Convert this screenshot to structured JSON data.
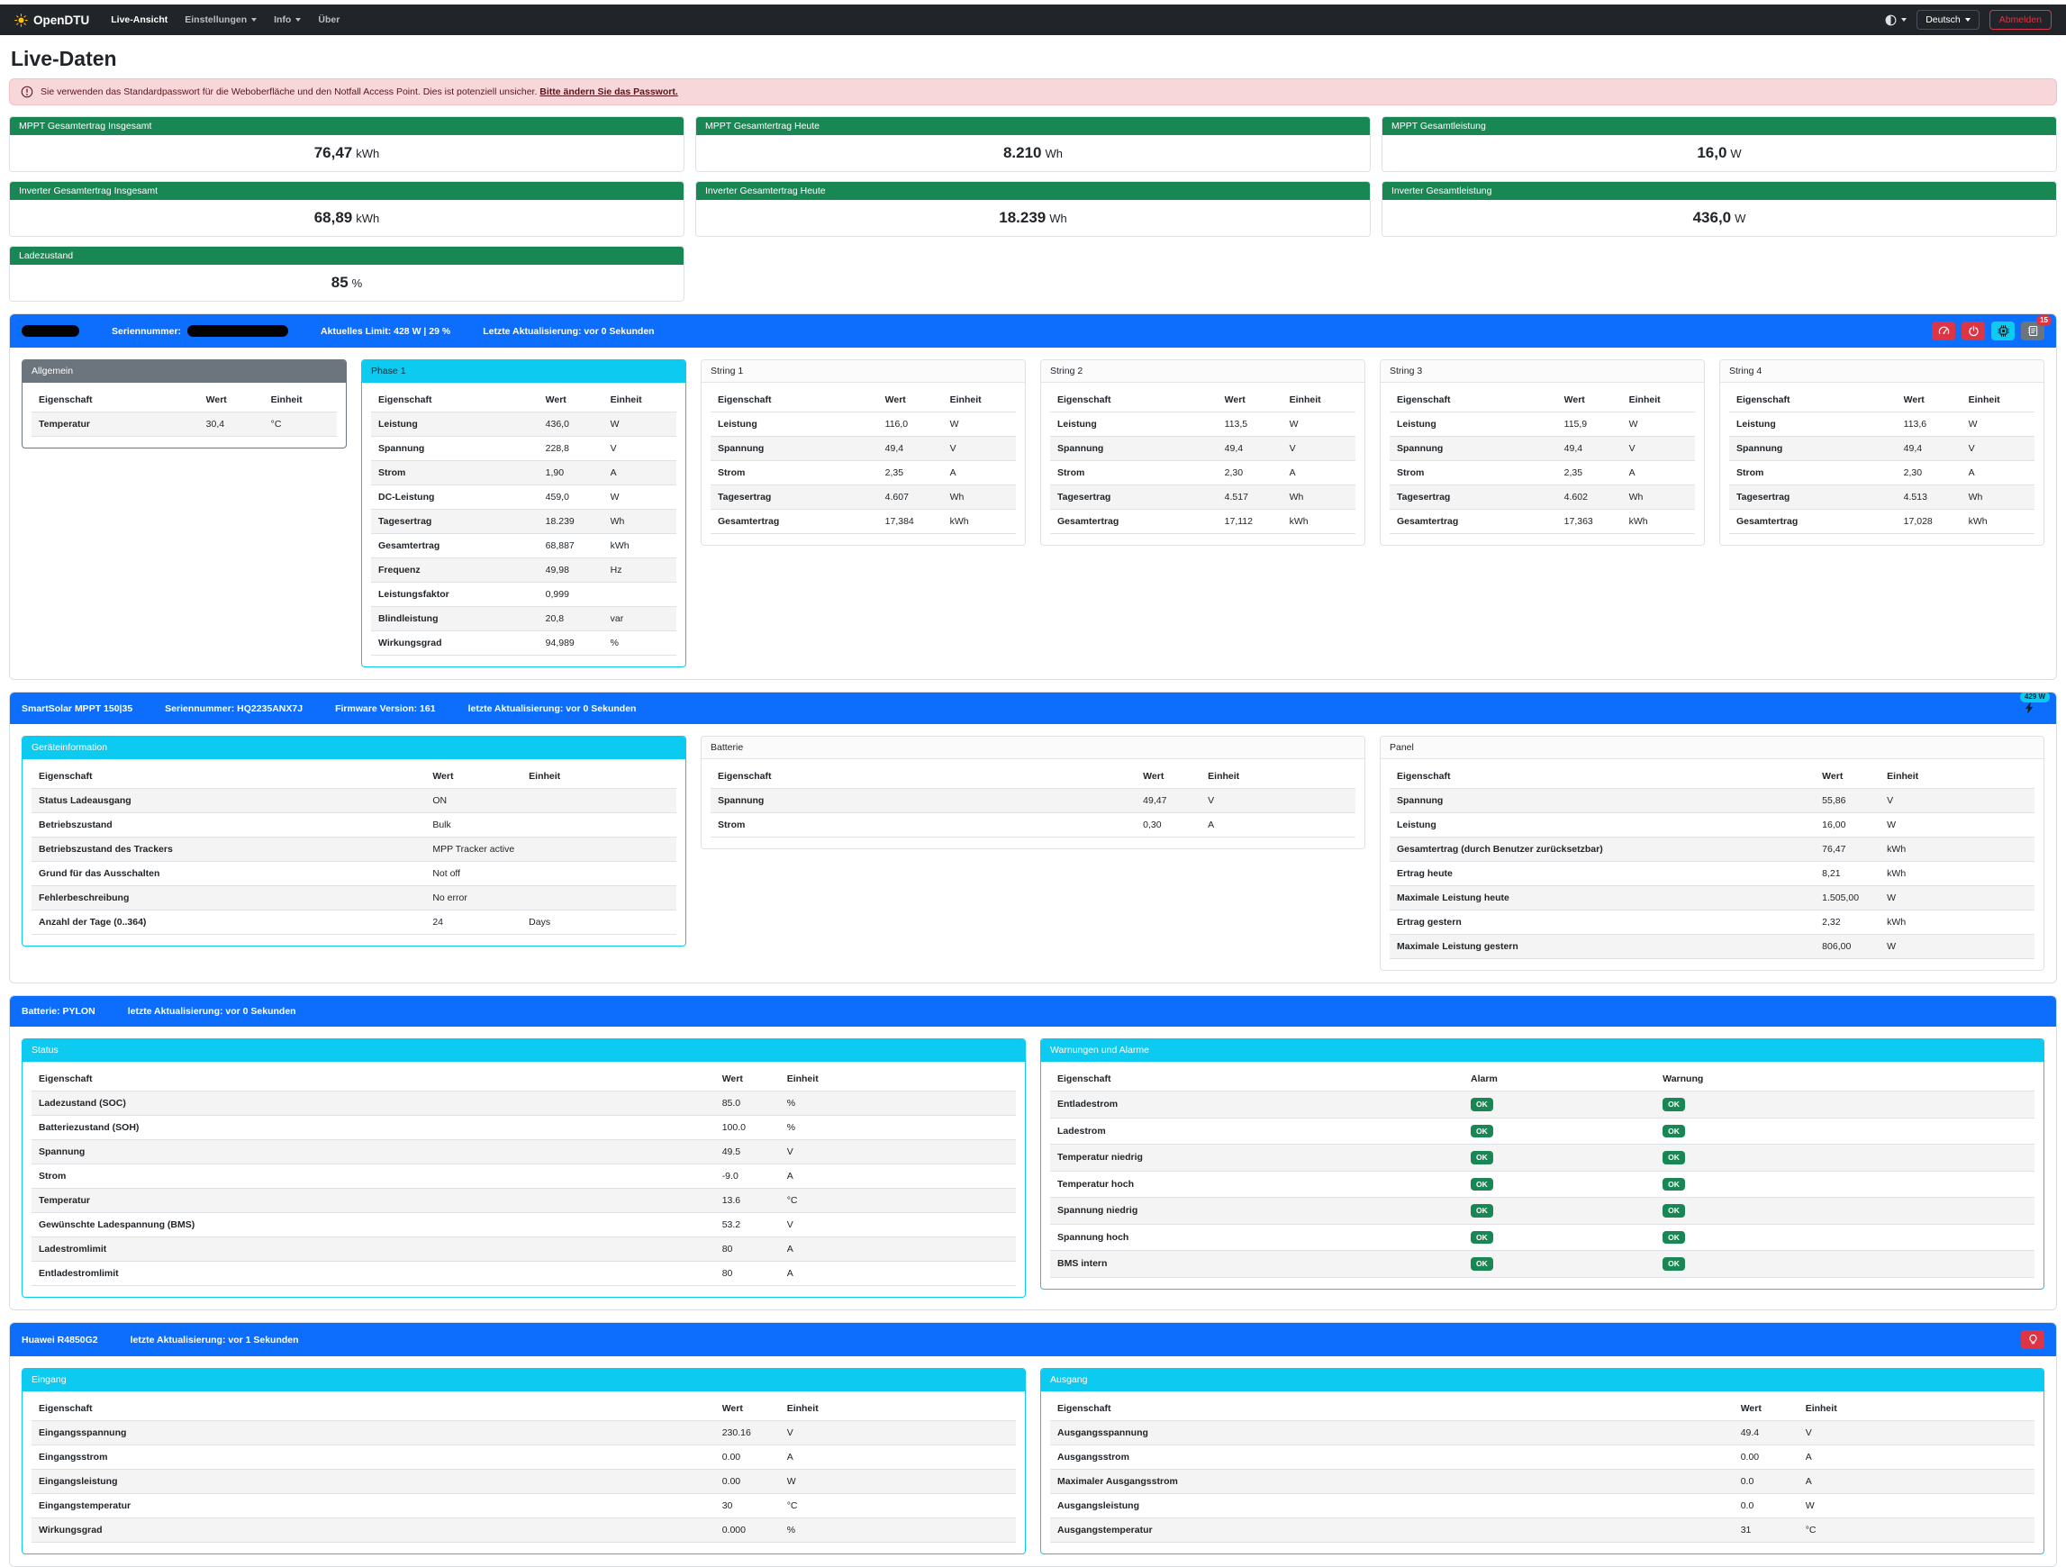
{
  "navbar": {
    "brand": "OpenDTU",
    "items": [
      {
        "label": "Live-Ansicht"
      },
      {
        "label": "Einstellungen"
      },
      {
        "label": "Info"
      },
      {
        "label": "Über"
      }
    ],
    "language": "Deutsch",
    "logout_label": "Abmelden"
  },
  "page": {
    "title": "Live-Daten"
  },
  "alert": {
    "text": "Sie verwenden das Standardpasswort für die Weboberfläche und den Notfall Access Point. Dies ist potenziell unsicher.",
    "link": "Bitte ändern Sie das Passwort."
  },
  "summary_cards": [
    {
      "title": "MPPT Gesamtertrag Insgesamt",
      "value": "76,47",
      "unit": "kWh"
    },
    {
      "title": "MPPT Gesamtertrag Heute",
      "value": "8.210",
      "unit": "Wh"
    },
    {
      "title": "MPPT Gesamtleistung",
      "value": "16,0",
      "unit": "W"
    },
    {
      "title": "Inverter Gesamtertrag Insgesamt",
      "value": "68,89",
      "unit": "kWh"
    },
    {
      "title": "Inverter Gesamtertrag Heute",
      "value": "18.239",
      "unit": "Wh"
    },
    {
      "title": "Inverter Gesamtleistung",
      "value": "436,0",
      "unit": "W"
    },
    {
      "title": "Ladezustand",
      "value": "85",
      "unit": "%"
    }
  ],
  "sections": {
    "inverter": {
      "bar": {
        "serial_label": "Seriennummer:",
        "limit": "Aktuelles Limit: 428 W | 29 %",
        "updated": "Letzte Aktualisierung: vor 0 Sekunden",
        "event_count": "15"
      },
      "allgemein": {
        "title": "Allgemein",
        "stripe": "odd",
        "columns": [
          "Eigenschaft",
          "Wert",
          "Einheit"
        ],
        "rows": [
          [
            "Temperatur",
            "30,4",
            "°C"
          ]
        ]
      },
      "phase1": {
        "title": "Phase 1",
        "stripe": "odd",
        "columns": [
          "Eigenschaft",
          "Wert",
          "Einheit"
        ],
        "rows": [
          [
            "Leistung",
            "436,0",
            "W"
          ],
          [
            "Spannung",
            "228,8",
            "V"
          ],
          [
            "Strom",
            "1,90",
            "A"
          ],
          [
            "DC-Leistung",
            "459,0",
            "W"
          ],
          [
            "Tagesertrag",
            "18.239",
            "Wh"
          ],
          [
            "Gesamtertrag",
            "68,887",
            "kWh"
          ],
          [
            "Frequenz",
            "49,98",
            "Hz"
          ],
          [
            "Leistungsfaktor",
            "0,999",
            ""
          ],
          [
            "Blindleistung",
            "20,8",
            "var"
          ],
          [
            "Wirkungsgrad",
            "94,989",
            "%"
          ]
        ]
      },
      "string1": {
        "title": "String 1",
        "stripe": "even",
        "columns": [
          "Eigenschaft",
          "Wert",
          "Einheit"
        ],
        "rows": [
          [
            "Leistung",
            "116,0",
            "W"
          ],
          [
            "Spannung",
            "49,4",
            "V"
          ],
          [
            "Strom",
            "2,35",
            "A"
          ],
          [
            "Tagesertrag",
            "4.607",
            "Wh"
          ],
          [
            "Gesamtertrag",
            "17,384",
            "kWh"
          ]
        ]
      },
      "string2": {
        "title": "String 2",
        "stripe": "even",
        "columns": [
          "Eigenschaft",
          "Wert",
          "Einheit"
        ],
        "rows": [
          [
            "Leistung",
            "113,5",
            "W"
          ],
          [
            "Spannung",
            "49,4",
            "V"
          ],
          [
            "Strom",
            "2,30",
            "A"
          ],
          [
            "Tagesertrag",
            "4.517",
            "Wh"
          ],
          [
            "Gesamtertrag",
            "17,112",
            "kWh"
          ]
        ]
      },
      "string3": {
        "title": "String 3",
        "stripe": "even",
        "columns": [
          "Eigenschaft",
          "Wert",
          "Einheit"
        ],
        "rows": [
          [
            "Leistung",
            "115,9",
            "W"
          ],
          [
            "Spannung",
            "49,4",
            "V"
          ],
          [
            "Strom",
            "2,35",
            "A"
          ],
          [
            "Tagesertrag",
            "4.602",
            "Wh"
          ],
          [
            "Gesamtertrag",
            "17,363",
            "kWh"
          ]
        ]
      },
      "string4": {
        "title": "String 4",
        "stripe": "even",
        "columns": [
          "Eigenschaft",
          "Wert",
          "Einheit"
        ],
        "rows": [
          [
            "Leistung",
            "113,6",
            "W"
          ],
          [
            "Spannung",
            "49,4",
            "V"
          ],
          [
            "Strom",
            "2,30",
            "A"
          ],
          [
            "Tagesertrag",
            "4.513",
            "Wh"
          ],
          [
            "Gesamtertrag",
            "17,028",
            "kWh"
          ]
        ]
      }
    },
    "victron": {
      "bar": {
        "title": "SmartSolar MPPT 150|35",
        "serial": "Seriennummer: HQ2235ANX7J",
        "firmware": "Firmware Version: 161",
        "updated": "letzte Aktualisierung: vor 0 Sekunden",
        "power_badge": "429 W"
      },
      "device_info": {
        "title": "Geräteinformation",
        "stripe": "odd",
        "columns": [
          "Eigenschaft",
          "Wert",
          "Einheit"
        ],
        "rows": [
          [
            "Status Ladeausgang",
            "ON",
            ""
          ],
          [
            "Betriebszustand",
            "Bulk",
            ""
          ],
          [
            "Betriebszustand des Trackers",
            "MPP Tracker active",
            ""
          ],
          [
            "Grund für das Ausschalten",
            "Not off",
            ""
          ],
          [
            "Fehlerbeschreibung",
            "No error",
            ""
          ],
          [
            "Anzahl der Tage (0..364)",
            "24",
            "Days"
          ]
        ]
      },
      "battery": {
        "title": "Batterie",
        "stripe": "odd",
        "columns": [
          "Eigenschaft",
          "Wert",
          "Einheit"
        ],
        "rows": [
          [
            "Spannung",
            "49,47",
            "V"
          ],
          [
            "Strom",
            "0,30",
            "A"
          ]
        ]
      },
      "panel": {
        "title": "Panel",
        "stripe": "odd",
        "columns": [
          "Eigenschaft",
          "Wert",
          "Einheit"
        ],
        "rows": [
          [
            "Spannung",
            "55,86",
            "V"
          ],
          [
            "Leistung",
            "16,00",
            "W"
          ],
          [
            "Gesamtertrag (durch Benutzer zurücksetzbar)",
            "76,47",
            "kWh"
          ],
          [
            "Ertrag heute",
            "8,21",
            "kWh"
          ],
          [
            "Maximale Leistung heute",
            "1.505,00",
            "W"
          ],
          [
            "Ertrag gestern",
            "2,32",
            "kWh"
          ],
          [
            "Maximale Leistung gestern",
            "806,00",
            "W"
          ]
        ]
      }
    },
    "battery": {
      "bar": {
        "title": "Batterie: PYLON",
        "updated": "letzte Aktualisierung: vor 0 Sekunden"
      },
      "status": {
        "title": "Status",
        "stripe": "odd",
        "columns": [
          "Eigenschaft",
          "Wert",
          "Einheit"
        ],
        "rows": [
          [
            "Ladezustand (SOC)",
            "85.0",
            "%"
          ],
          [
            "Batteriezustand (SOH)",
            "100.0",
            "%"
          ],
          [
            "Spannung",
            "49.5",
            "V"
          ],
          [
            "Strom",
            "-9.0",
            "A"
          ],
          [
            "Temperatur",
            "13.6",
            "°C"
          ],
          [
            "Gewünschte Ladespannung (BMS)",
            "53.2",
            "V"
          ],
          [
            "Ladestromlimit",
            "80",
            "A"
          ],
          [
            "Entladestromlimit",
            "80",
            "A"
          ]
        ]
      },
      "warnings": {
        "title": "Warnungen und Alarme",
        "stripe": "odd",
        "badges": true,
        "columns": [
          "Eigenschaft",
          "Alarm",
          "Warnung"
        ],
        "rows": [
          [
            "Entladestrom",
            "OK",
            "OK"
          ],
          [
            "Ladestrom",
            "OK",
            "OK"
          ],
          [
            "Temperatur niedrig",
            "OK",
            "OK"
          ],
          [
            "Temperatur hoch",
            "OK",
            "OK"
          ],
          [
            "Spannung niedrig",
            "OK",
            "OK"
          ],
          [
            "Spannung hoch",
            "OK",
            "OK"
          ],
          [
            "BMS intern",
            "OK",
            "OK"
          ]
        ]
      }
    },
    "huawei": {
      "bar": {
        "title": "Huawei R4850G2",
        "updated": "letzte Aktualisierung: vor 1 Sekunden"
      },
      "input": {
        "title": "Eingang",
        "stripe": "odd",
        "columns": [
          "Eigenschaft",
          "Wert",
          "Einheit"
        ],
        "rows": [
          [
            "Eingangsspannung",
            "230.16",
            "V"
          ],
          [
            "Eingangsstrom",
            "0.00",
            "A"
          ],
          [
            "Eingangsleistung",
            "0.00",
            "W"
          ],
          [
            "Eingangstemperatur",
            "30",
            "°C"
          ],
          [
            "Wirkungsgrad",
            "0.000",
            "%"
          ]
        ]
      },
      "output": {
        "title": "Ausgang",
        "stripe": "odd",
        "columns": [
          "Eigenschaft",
          "Wert",
          "Einheit"
        ],
        "rows": [
          [
            "Ausgangsspannung",
            "49.4",
            "V"
          ],
          [
            "Ausgangsstrom",
            "0.00",
            "A"
          ],
          [
            "Maximaler Ausgangsstrom",
            "0.0",
            "A"
          ],
          [
            "Ausgangsleistung",
            "0.0",
            "W"
          ],
          [
            "Ausgangstemperatur",
            "31",
            "°C"
          ]
        ]
      }
    }
  }
}
